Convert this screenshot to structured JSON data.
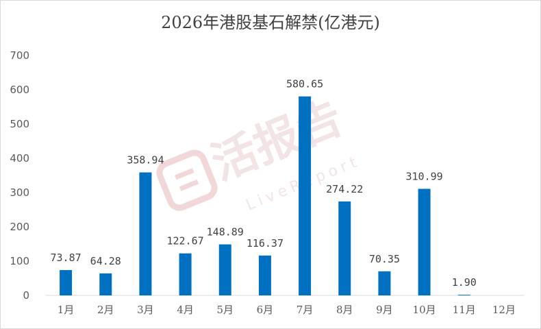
{
  "chart_data": {
    "type": "bar",
    "title": "2026年港股基石解禁(亿港元)",
    "categories": [
      "1月",
      "2月",
      "3月",
      "4月",
      "5月",
      "6月",
      "7月",
      "8月",
      "9月",
      "10月",
      "11月",
      "12月"
    ],
    "values": [
      73.87,
      64.28,
      358.94,
      122.67,
      148.89,
      116.37,
      580.65,
      274.22,
      70.35,
      310.99,
      1.9,
      0
    ],
    "data_labels": [
      "73.87",
      "64.28",
      "358.94",
      "122.67",
      "148.89",
      "116.37",
      "580.65",
      "274.22",
      "70.35",
      "310.99",
      "1.90",
      ""
    ],
    "ylim": [
      0,
      700
    ],
    "yticks": [
      0,
      100,
      200,
      300,
      400,
      500,
      600,
      700
    ],
    "grid": false,
    "legend": "none",
    "bar_color": "#0070c0"
  },
  "watermark": {
    "main": "活报告",
    "sub": "LiveReport"
  }
}
